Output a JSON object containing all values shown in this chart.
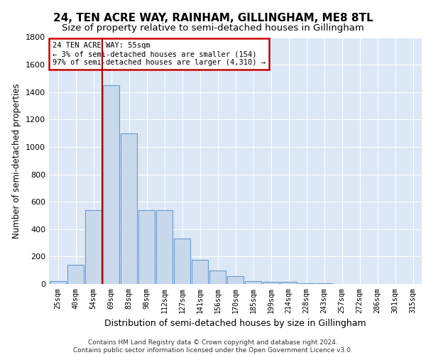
{
  "title": "24, TEN ACRE WAY, RAINHAM, GILLINGHAM, ME8 8TL",
  "subtitle": "Size of property relative to semi-detached houses in Gillingham",
  "xlabel": "Distribution of semi-detached houses by size in Gillingham",
  "ylabel": "Number of semi-detached properties",
  "categories": [
    "25sqm",
    "40sqm",
    "54sqm",
    "69sqm",
    "83sqm",
    "98sqm",
    "112sqm",
    "127sqm",
    "141sqm",
    "156sqm",
    "170sqm",
    "185sqm",
    "199sqm",
    "214sqm",
    "228sqm",
    "243sqm",
    "257sqm",
    "272sqm",
    "286sqm",
    "301sqm",
    "315sqm"
  ],
  "values": [
    20,
    140,
    540,
    1450,
    1100,
    540,
    540,
    330,
    175,
    100,
    55,
    20,
    15,
    18,
    5,
    3,
    2,
    2,
    1,
    1,
    1
  ],
  "bar_color": "#c9d9ec",
  "bar_edge_color": "#6699cc",
  "property_line_x": 2.5,
  "annotation_title": "24 TEN ACRE WAY: 55sqm",
  "annotation_line1": "← 3% of semi-detached houses are smaller (154)",
  "annotation_line2": "97% of semi-detached houses are larger (4,310) →",
  "annotation_box_color": "#ffffff",
  "annotation_border_color": "#cc0000",
  "vline_color": "#aa0000",
  "ylim": [
    0,
    1800
  ],
  "yticks": [
    0,
    200,
    400,
    600,
    800,
    1000,
    1200,
    1400,
    1600,
    1800
  ],
  "background_color": "#dce8f5",
  "grid_color": "#ffffff",
  "footer_line1": "Contains HM Land Registry data © Crown copyright and database right 2024.",
  "footer_line2": "Contains public sector information licensed under the Open Government Licence v3.0.",
  "title_fontsize": 11,
  "subtitle_fontsize": 9.5,
  "xlabel_fontsize": 9,
  "ylabel_fontsize": 8.5
}
